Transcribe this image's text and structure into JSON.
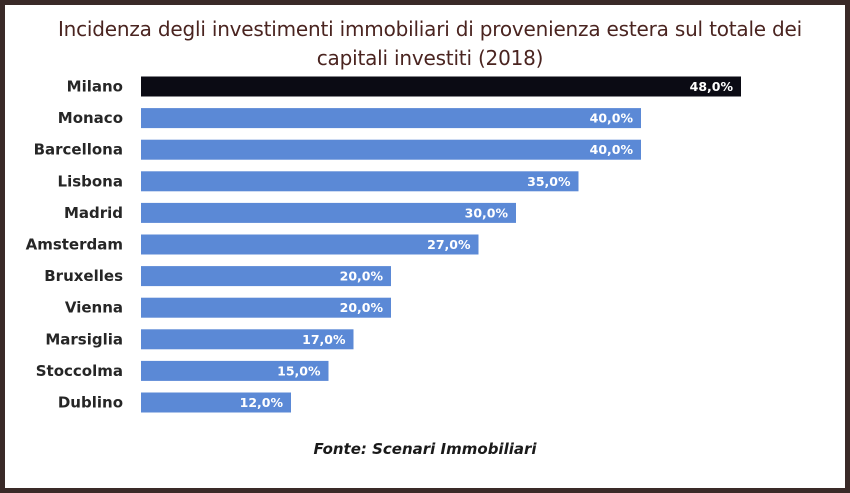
{
  "chart_data": {
    "type": "bar",
    "orientation": "horizontal",
    "title": "Incidenza degli investimenti immobiliari di provenienza estera sul totale dei capitali investiti (2018)",
    "title_lines": [
      "Incidenza degli investimenti immobiliari di provenienza estera sul totale dei",
      "capitali investiti (2018)"
    ],
    "categories": [
      "Milano",
      "Monaco",
      "Barcellona",
      "Lisbona",
      "Madrid",
      "Amsterdam",
      "Bruxelles",
      "Vienna",
      "Marsiglia",
      "Stoccolma",
      "Dublino"
    ],
    "values": [
      48,
      40,
      40,
      35,
      30,
      27,
      20,
      20,
      17,
      15,
      12
    ],
    "value_labels": [
      "48,0%",
      "40,0%",
      "40,0%",
      "35,0%",
      "30,0%",
      "27,0%",
      "20,0%",
      "20,0%",
      "17,0%",
      "15,0%",
      "12,0%"
    ],
    "unit": "%",
    "xlim": [
      0,
      48
    ],
    "grid": false,
    "legend": "none",
    "highlight_category": "Milano",
    "colors": {
      "bar": "#5b89d6",
      "highlight_bar": "#0b0b14",
      "title": "#4a2420",
      "value_label": "#ffffff",
      "frame": "#3a2a28"
    },
    "source": "Fonte: Scenari Immobiliari"
  }
}
